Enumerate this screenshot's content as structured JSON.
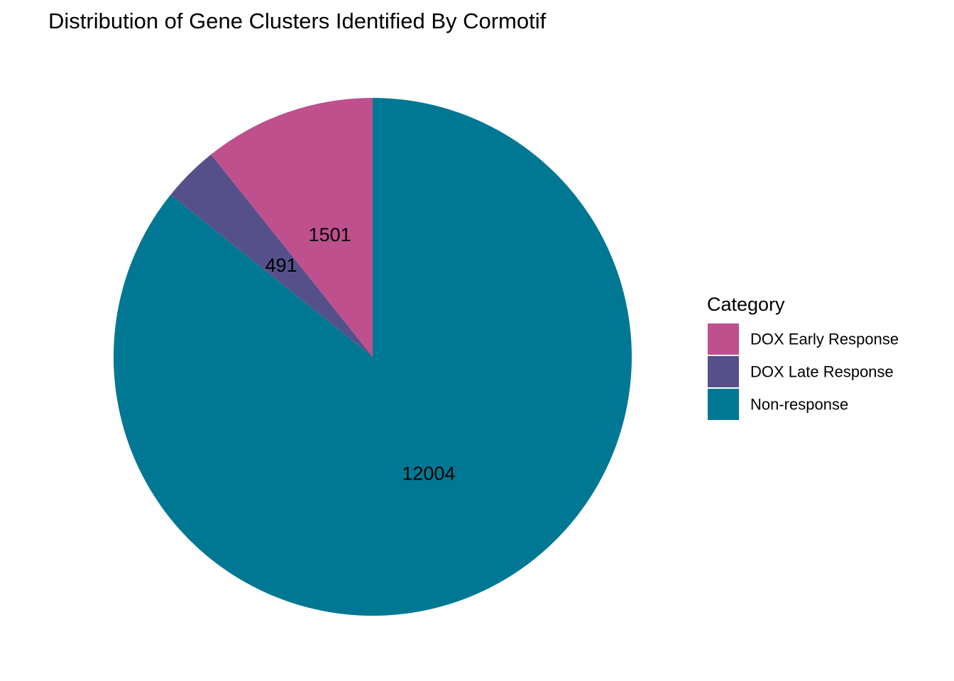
{
  "chart_data": {
    "type": "pie",
    "title": "Distribution of Gene Clusters Identified By Cormotif",
    "legend_title": "Category",
    "legend_position": "right",
    "start_angle": "12 o'clock",
    "direction": "counterclockwise",
    "slices": [
      {
        "label": "DOX Early Response",
        "value": 1501,
        "value_label": "1501",
        "color": "#BE508E"
      },
      {
        "label": "DOX Late Response",
        "value": 491,
        "value_label": "491",
        "color": "#56508A"
      },
      {
        "label": "Non-response",
        "value": 12004,
        "value_label": "12004",
        "color": "#007893"
      }
    ]
  }
}
